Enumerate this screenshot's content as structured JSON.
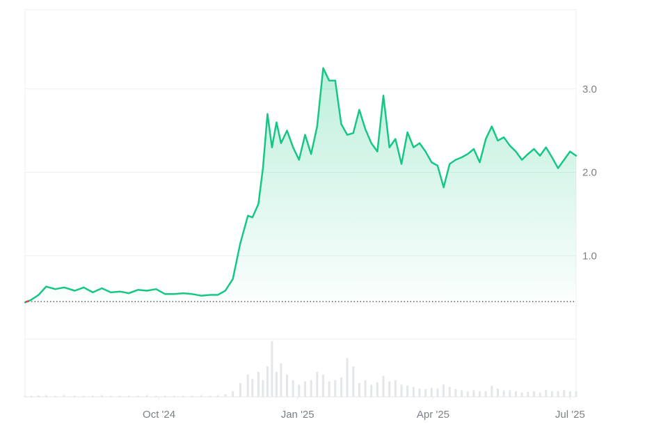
{
  "chart_data": [
    {
      "type": "area",
      "title": "",
      "xlabel": "",
      "ylabel": "",
      "ylim": [
        0,
        3.95
      ],
      "y_ticks": [
        "1.0",
        "2.0",
        "3.0"
      ],
      "x_ticks": [
        {
          "label": "Oct '24",
          "date": "2024-10-01"
        },
        {
          "label": "Jan '25",
          "date": "2025-01-01"
        },
        {
          "label": "Apr '25",
          "date": "2025-04-01"
        },
        {
          "label": "Jul '25",
          "date": "2025-07-01"
        }
      ],
      "baseline": 0.45,
      "grid": true,
      "line_color": "#16c784",
      "x": [
        "2024-07-04",
        "2024-07-08",
        "2024-07-13",
        "2024-07-18",
        "2024-07-24",
        "2024-07-30",
        "2024-08-06",
        "2024-08-12",
        "2024-08-18",
        "2024-08-24",
        "2024-08-30",
        "2024-09-05",
        "2024-09-11",
        "2024-09-17",
        "2024-09-23",
        "2024-09-29",
        "2024-10-05",
        "2024-10-11",
        "2024-10-17",
        "2024-10-23",
        "2024-10-29",
        "2024-11-04",
        "2024-11-09",
        "2024-11-14",
        "2024-11-19",
        "2024-11-24",
        "2024-11-29",
        "2024-12-02",
        "2024-12-06",
        "2024-12-09",
        "2024-12-12",
        "2024-12-15",
        "2024-12-18",
        "2024-12-21",
        "2024-12-25",
        "2024-12-29",
        "2025-01-02",
        "2025-01-06",
        "2025-01-10",
        "2025-01-14",
        "2025-01-18",
        "2025-01-22",
        "2025-01-26",
        "2025-01-30",
        "2025-02-03",
        "2025-02-07",
        "2025-02-11",
        "2025-02-15",
        "2025-02-19",
        "2025-02-23",
        "2025-02-27",
        "2025-03-03",
        "2025-03-07",
        "2025-03-11",
        "2025-03-15",
        "2025-03-19",
        "2025-03-23",
        "2025-03-27",
        "2025-03-31",
        "2025-04-04",
        "2025-04-08",
        "2025-04-12",
        "2025-04-16",
        "2025-04-20",
        "2025-04-24",
        "2025-04-28",
        "2025-05-02",
        "2025-05-06",
        "2025-05-10",
        "2025-05-14",
        "2025-05-18",
        "2025-05-22",
        "2025-05-26",
        "2025-05-30",
        "2025-06-03",
        "2025-06-07",
        "2025-06-11",
        "2025-06-15",
        "2025-06-19",
        "2025-06-23",
        "2025-06-27",
        "2025-07-01",
        "2025-07-05"
      ],
      "values": [
        0.44,
        0.47,
        0.53,
        0.63,
        0.6,
        0.62,
        0.58,
        0.62,
        0.56,
        0.61,
        0.56,
        0.57,
        0.55,
        0.59,
        0.58,
        0.6,
        0.54,
        0.54,
        0.55,
        0.54,
        0.52,
        0.53,
        0.53,
        0.58,
        0.72,
        1.15,
        1.48,
        1.46,
        1.62,
        2.05,
        2.7,
        2.3,
        2.6,
        2.35,
        2.5,
        2.3,
        2.15,
        2.45,
        2.22,
        2.55,
        3.25,
        3.1,
        3.1,
        2.58,
        2.45,
        2.47,
        2.75,
        2.52,
        2.35,
        2.25,
        2.92,
        2.3,
        2.4,
        2.1,
        2.48,
        2.3,
        2.35,
        2.25,
        2.12,
        2.08,
        1.82,
        2.1,
        2.15,
        2.18,
        2.22,
        2.28,
        2.12,
        2.4,
        2.55,
        2.38,
        2.42,
        2.32,
        2.25,
        2.15,
        2.22,
        2.28,
        2.2,
        2.3,
        2.18,
        2.05,
        2.15,
        2.25,
        2.2
      ],
      "volume_scale": [
        0.02,
        0.02,
        0.03,
        0.03,
        0.02,
        0.03,
        0.02,
        0.02,
        0.02,
        0.03,
        0.02,
        0.02,
        0.02,
        0.02,
        0.03,
        0.02,
        0.02,
        0.02,
        0.02,
        0.02,
        0.03,
        0.02,
        0.03,
        0.05,
        0.1,
        0.25,
        0.4,
        0.32,
        0.45,
        0.3,
        0.55,
        1.0,
        0.45,
        0.6,
        0.4,
        0.3,
        0.22,
        0.28,
        0.3,
        0.45,
        0.4,
        0.28,
        0.3,
        0.35,
        0.7,
        0.55,
        0.25,
        0.3,
        0.22,
        0.26,
        0.38,
        0.28,
        0.3,
        0.22,
        0.2,
        0.18,
        0.15,
        0.14,
        0.16,
        0.15,
        0.22,
        0.18,
        0.14,
        0.12,
        0.1,
        0.12,
        0.1,
        0.1,
        0.2,
        0.15,
        0.12,
        0.12,
        0.1,
        0.08,
        0.09,
        0.1,
        0.08,
        0.12,
        0.1,
        0.1,
        0.12,
        0.1,
        0.1
      ]
    }
  ]
}
